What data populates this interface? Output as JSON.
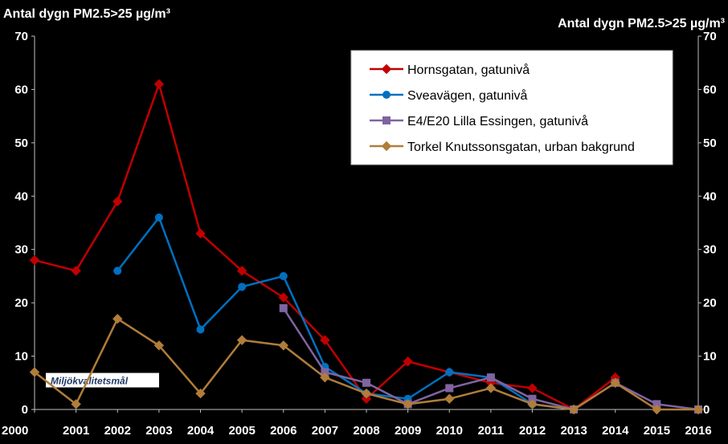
{
  "chart_data": {
    "type": "line",
    "title": "",
    "ylabel_left": "Antal dygn PM2.5>25 µg/m³",
    "ylabel_right": "Antal dygn PM2.5>25 µg/m³",
    "xlabel": "",
    "ylim": [
      0,
      70
    ],
    "yticks": [
      0,
      10,
      20,
      30,
      40,
      50,
      60,
      70
    ],
    "categories": [
      "2000",
      "2001",
      "2002",
      "2003",
      "2004",
      "2005",
      "2006",
      "2007",
      "2008",
      "2009",
      "2010",
      "2011",
      "2012",
      "2013",
      "2014",
      "2015",
      "2016"
    ],
    "grid": false,
    "legend_position": "top-right",
    "series": [
      {
        "name": "Hornsgatan, gatunivå",
        "color": "#c00000",
        "marker": "diamond",
        "values": [
          28,
          26,
          39,
          61,
          33,
          26,
          21,
          13,
          2,
          9,
          7,
          5,
          4,
          0,
          6,
          null,
          null
        ]
      },
      {
        "name": "Sveavägen, gatunivå",
        "color": "#0070c0",
        "marker": "circle",
        "values": [
          null,
          null,
          26,
          36,
          15,
          23,
          25,
          8,
          3,
          2,
          7,
          6,
          1,
          0,
          5,
          null,
          null
        ]
      },
      {
        "name": "E4/E20 Lilla Essingen, gatunivå",
        "color": "#8064a2",
        "marker": "square",
        "values": [
          null,
          null,
          null,
          null,
          null,
          null,
          19,
          7,
          5,
          1,
          4,
          6,
          2,
          0,
          5,
          1,
          0
        ]
      },
      {
        "name": "Torkel Knutssonsgatan, urban bakgrund",
        "color": "#b07d3a",
        "marker": "diamond",
        "values": [
          7,
          1,
          17,
          12,
          3,
          13,
          12,
          6,
          3,
          1,
          2,
          4,
          1,
          0,
          5,
          0,
          0
        ]
      }
    ],
    "annotation": {
      "text": "Miljökvalitetsmål",
      "value": 7
    }
  }
}
